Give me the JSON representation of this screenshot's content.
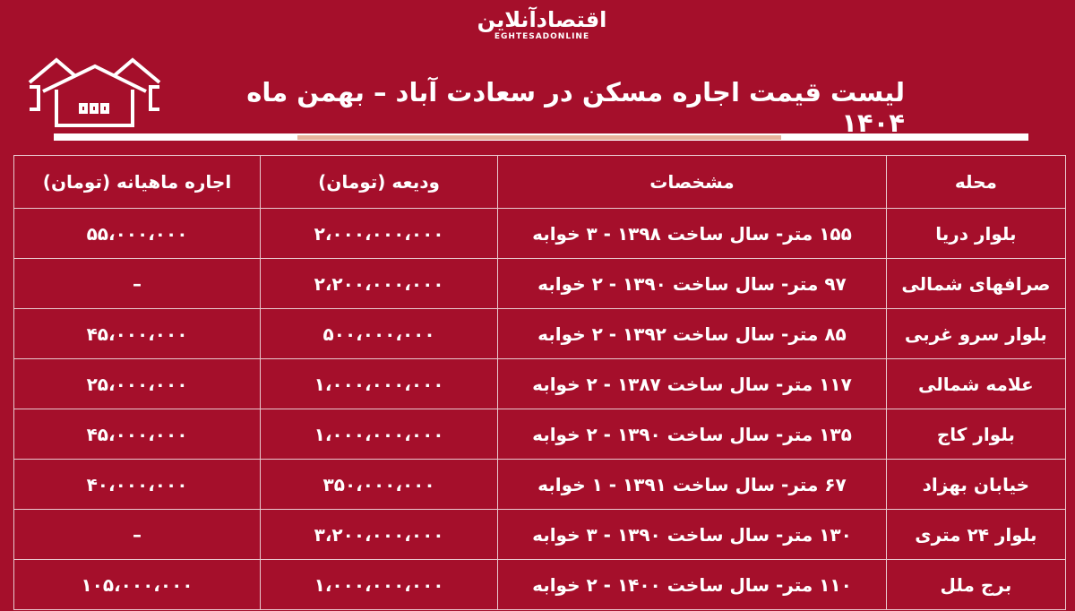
{
  "logo": {
    "fa": "اقتصادآنلاین",
    "en": "EGHTESADONLINE"
  },
  "title": "لیست قیمت اجاره مسکن در سعادت آباد – بهمن ماه ۱۴۰۴",
  "table": {
    "headers": [
      "محله",
      "مشخصات",
      "ودیعه (تومان)",
      "اجاره ماهیانه (تومان)"
    ],
    "rows": [
      [
        "بلوار دریا",
        "۱۵۵ متر- سال ساخت ۱۳۹۸ - ۳ خوابه",
        "۲،۰۰۰،۰۰۰،۰۰۰",
        "۵۵،۰۰۰،۰۰۰"
      ],
      [
        "صرافهای شمالی",
        "۹۷ متر- سال ساخت ۱۳۹۰ - ۲ خوابه",
        "۲،۲۰۰،۰۰۰،۰۰۰",
        "–"
      ],
      [
        "بلوار سرو غربی",
        "۸۵ متر- سال ساخت ۱۳۹۲ - ۲ خوابه",
        "۵۰۰،۰۰۰،۰۰۰",
        "۴۵،۰۰۰،۰۰۰"
      ],
      [
        "علامه شمالی",
        "۱۱۷ متر- سال ساخت ۱۳۸۷ - ۲ خوابه",
        "۱،۰۰۰،۰۰۰،۰۰۰",
        "۲۵،۰۰۰،۰۰۰"
      ],
      [
        "بلوار کاج",
        "۱۳۵ متر- سال ساخت ۱۳۹۰ - ۲ خوابه",
        "۱،۰۰۰،۰۰۰،۰۰۰",
        "۴۵،۰۰۰،۰۰۰"
      ],
      [
        "خیابان بهزاد",
        "۶۷ متر- سال ساخت ۱۳۹۱ - ۱ خوابه",
        "۳۵۰،۰۰۰،۰۰۰",
        "۴۰،۰۰۰،۰۰۰"
      ],
      [
        "بلوار ۲۴ متری",
        "۱۳۰ متر- سال ساخت ۱۳۹۰ - ۳ خوابه",
        "۳،۲۰۰،۰۰۰،۰۰۰",
        "–"
      ],
      [
        "برج ملل",
        "۱۱۰ متر- سال ساخت ۱۴۰۰ - ۲ خوابه",
        "۱،۰۰۰،۰۰۰،۰۰۰",
        "۱۰۵،۰۰۰،۰۰۰"
      ]
    ]
  },
  "colors": {
    "background": "#a50f2b",
    "text": "#ffffff",
    "accent_rule": "#e7b29c"
  }
}
